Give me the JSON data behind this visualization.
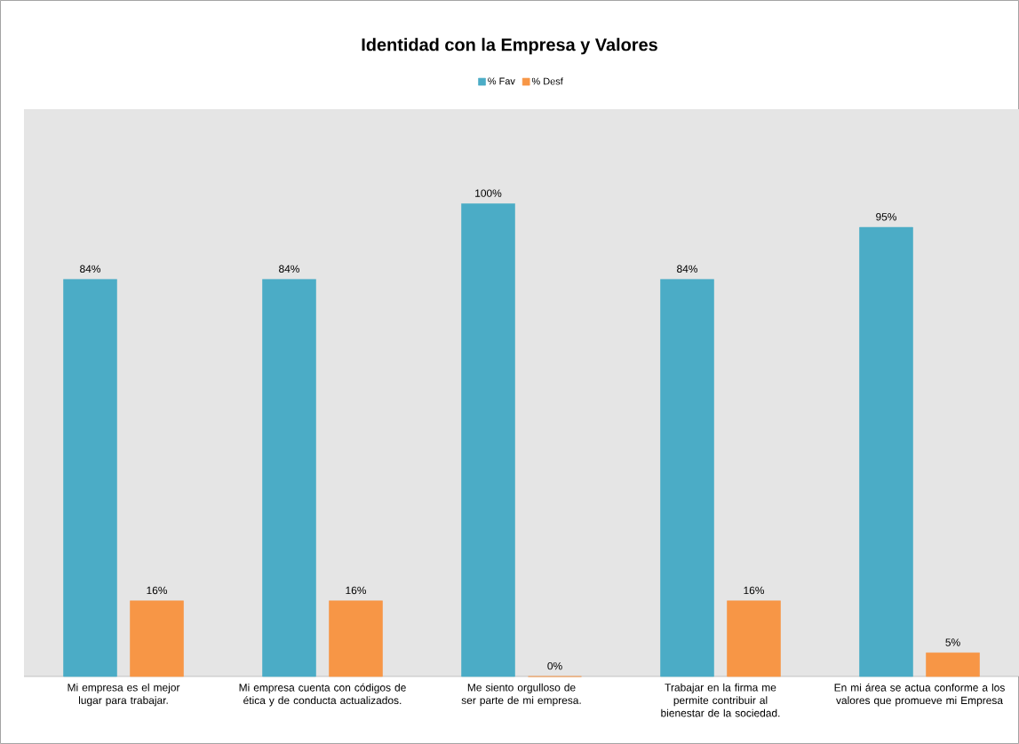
{
  "chart_data": {
    "type": "bar",
    "title": "Identidad con la Empresa y Valores",
    "categories": [
      "Mi empresa es el mejor lugar para trabajar.",
      "Mi empresa cuenta con códigos de ética y de conducta actualizados.",
      "Me siento orgulloso de ser parte de mi empresa.",
      "Trabajar en la firma me permite contribuir al bienestar de la sociedad.",
      "En mi área se actua conforme a los valores que promueve mi Empresa"
    ],
    "series": [
      {
        "name": "% Fav",
        "color": "#4bacc6",
        "values": [
          84,
          84,
          100,
          84,
          95
        ],
        "value_labels": [
          "84%",
          "84%",
          "100%",
          "84%",
          "95%"
        ]
      },
      {
        "name": "% Desf",
        "color": "#f79646",
        "values": [
          16,
          16,
          0,
          16,
          5
        ],
        "value_labels": [
          "16%",
          "16%",
          "0%",
          "16%",
          "5%"
        ]
      }
    ],
    "legend": "top",
    "grid": false
  }
}
